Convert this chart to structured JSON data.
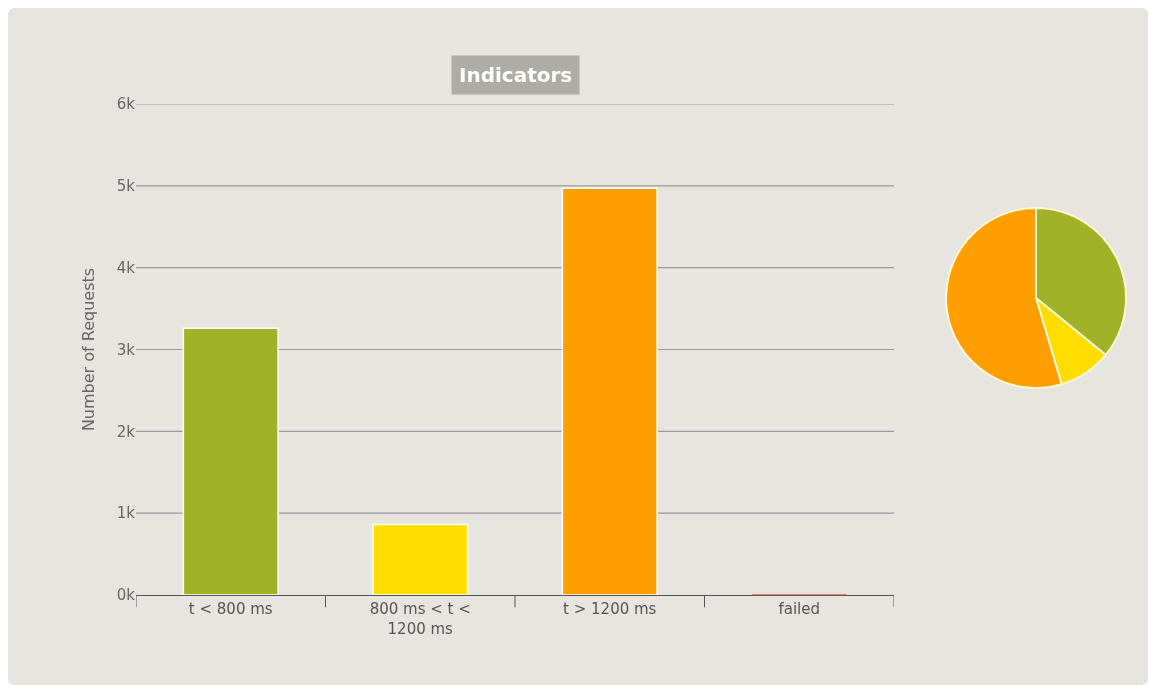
{
  "chart_data": [
    {
      "type": "bar",
      "title": "Indicators",
      "ylabel": "Number of Requests",
      "categories": [
        "t < 800 ms",
        "800 ms < t < 1200 ms",
        "t > 1200 ms",
        "failed"
      ],
      "values": [
        3260,
        860,
        4970,
        0
      ],
      "colors": [
        "#a0b228",
        "#ffdd00",
        "#ff9e00",
        "#f15b4f"
      ],
      "ylim": [
        0,
        6000
      ],
      "yticks": [
        {
          "value": 0,
          "label": "0k"
        },
        {
          "value": 1000,
          "label": "1k"
        },
        {
          "value": 2000,
          "label": "2k"
        },
        {
          "value": 3000,
          "label": "3k"
        },
        {
          "value": 4000,
          "label": "4k"
        },
        {
          "value": 5000,
          "label": "5k"
        },
        {
          "value": 6000,
          "label": "6k"
        }
      ],
      "grid": "y",
      "legend": false
    },
    {
      "type": "pie",
      "categories": [
        null,
        null,
        null
      ],
      "values": [
        35.9,
        9.5,
        54.6
      ],
      "colors": [
        "#a0b228",
        "#ffdd00",
        "#ff9e00"
      ],
      "legend": false
    }
  ]
}
